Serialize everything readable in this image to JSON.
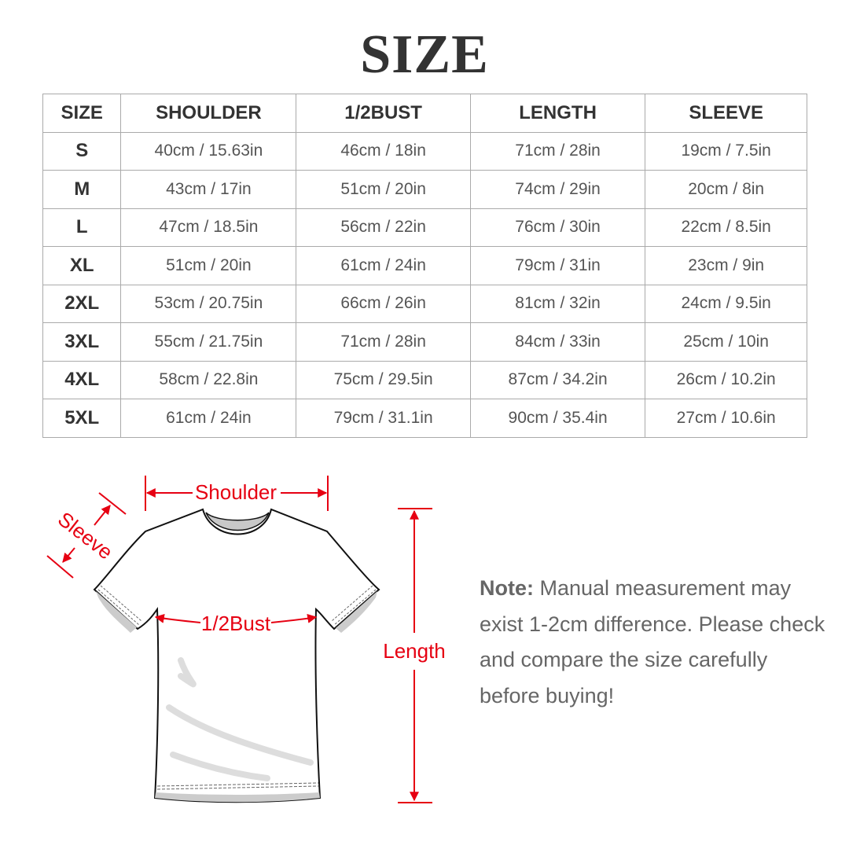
{
  "title": "SIZE",
  "table": {
    "headers": [
      "SIZE",
      "SHOULDER",
      "1/2BUST",
      "LENGTH",
      "SLEEVE"
    ],
    "rows": [
      [
        "S",
        "40cm / 15.63in",
        "46cm / 18in",
        "71cm / 28in",
        "19cm / 7.5in"
      ],
      [
        "M",
        "43cm / 17in",
        "51cm / 20in",
        "74cm / 29in",
        "20cm / 8in"
      ],
      [
        "L",
        "47cm / 18.5in",
        "56cm / 22in",
        "76cm / 30in",
        "22cm / 8.5in"
      ],
      [
        "XL",
        "51cm / 20in",
        "61cm / 24in",
        "79cm / 31in",
        "23cm / 9in"
      ],
      [
        "2XL",
        "53cm / 20.75in",
        "66cm / 26in",
        "81cm / 32in",
        "24cm / 9.5in"
      ],
      [
        "3XL",
        "55cm / 21.75in",
        "71cm / 28in",
        "84cm / 33in",
        "25cm / 10in"
      ],
      [
        "4XL",
        "58cm / 22.8in",
        "75cm / 29.5in",
        "87cm / 34.2in",
        "26cm / 10.2in"
      ],
      [
        "5XL",
        "61cm / 24in",
        "79cm / 31.1in",
        "90cm / 35.4in",
        "27cm / 10.6in"
      ]
    ]
  },
  "diagram": {
    "shoulder": "Shoulder",
    "sleeve": "Sleeve",
    "bust": "1/2Bust",
    "length": "Length",
    "accent_color": "#e60012"
  },
  "note": {
    "label": "Note:",
    "text": " Manual measurement may exist 1-2cm difference. Please check and compare the size carefully before buying!"
  }
}
